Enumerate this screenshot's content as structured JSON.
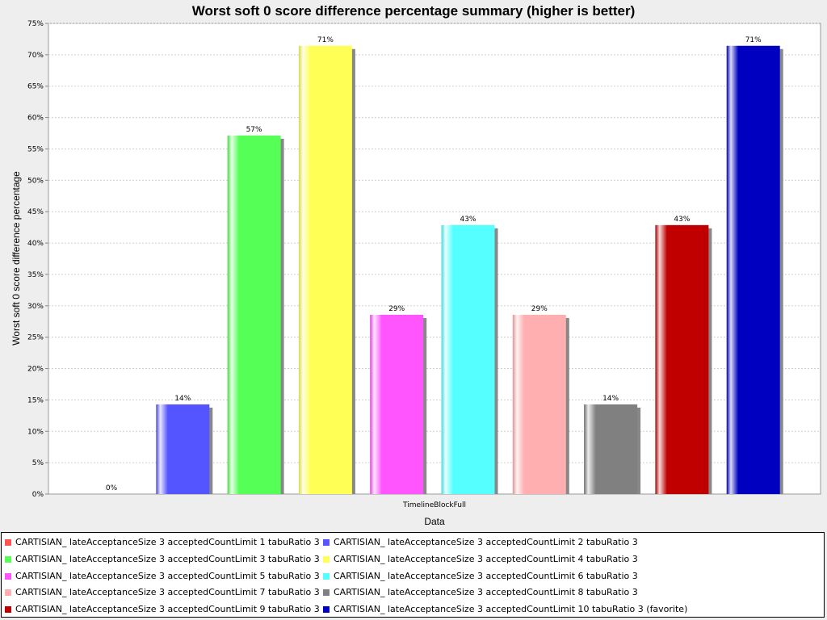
{
  "chart_data": {
    "type": "bar",
    "title": "Worst soft 0 score difference percentage summary (higher is better)",
    "xlabel": "Data",
    "ylabel": "Worst soft 0 score difference percentage",
    "categories": [
      "TimelineBlockFull"
    ],
    "ylim": [
      0,
      75
    ],
    "yticks": [
      "0%",
      "5%",
      "10%",
      "15%",
      "20%",
      "25%",
      "30%",
      "35%",
      "40%",
      "45%",
      "50%",
      "55%",
      "60%",
      "65%",
      "70%",
      "75%"
    ],
    "grid": true,
    "legend_position": "bottom",
    "series": [
      {
        "name": "CARTISIAN_ lateAcceptanceSize 3 acceptedCountLimit 1 tabuRatio 3",
        "value": 0,
        "label": "0%",
        "color": "#ff5555"
      },
      {
        "name": "CARTISIAN_ lateAcceptanceSize 3 acceptedCountLimit 2 tabuRatio 3",
        "value": 14.29,
        "label": "14%",
        "color": "#5555ff"
      },
      {
        "name": "CARTISIAN_ lateAcceptanceSize 3 acceptedCountLimit 3 tabuRatio 3",
        "value": 57.14,
        "label": "57%",
        "color": "#55ff55"
      },
      {
        "name": "CARTISIAN_ lateAcceptanceSize 3 acceptedCountLimit 4 tabuRatio 3",
        "value": 71.43,
        "label": "71%",
        "color": "#ffff55"
      },
      {
        "name": "CARTISIAN_ lateAcceptanceSize 3 acceptedCountLimit 5 tabuRatio 3",
        "value": 28.57,
        "label": "29%",
        "color": "#ff55ff"
      },
      {
        "name": "CARTISIAN_ lateAcceptanceSize 3 acceptedCountLimit 6 tabuRatio 3",
        "value": 42.86,
        "label": "43%",
        "color": "#55ffff"
      },
      {
        "name": "CARTISIAN_ lateAcceptanceSize 3 acceptedCountLimit 7 tabuRatio 3",
        "value": 28.57,
        "label": "29%",
        "color": "#ffafaf"
      },
      {
        "name": "CARTISIAN_ lateAcceptanceSize 3 acceptedCountLimit 8 tabuRatio 3",
        "value": 14.29,
        "label": "14%",
        "color": "#808080"
      },
      {
        "name": "CARTISIAN_ lateAcceptanceSize 3 acceptedCountLimit 9 tabuRatio 3",
        "value": 42.86,
        "label": "43%",
        "color": "#c00000"
      },
      {
        "name": "CARTISIAN_ lateAcceptanceSize 3 acceptedCountLimit 10 tabuRatio 3 (favorite)",
        "value": 71.43,
        "label": "71%",
        "color": "#0000c0"
      }
    ]
  }
}
